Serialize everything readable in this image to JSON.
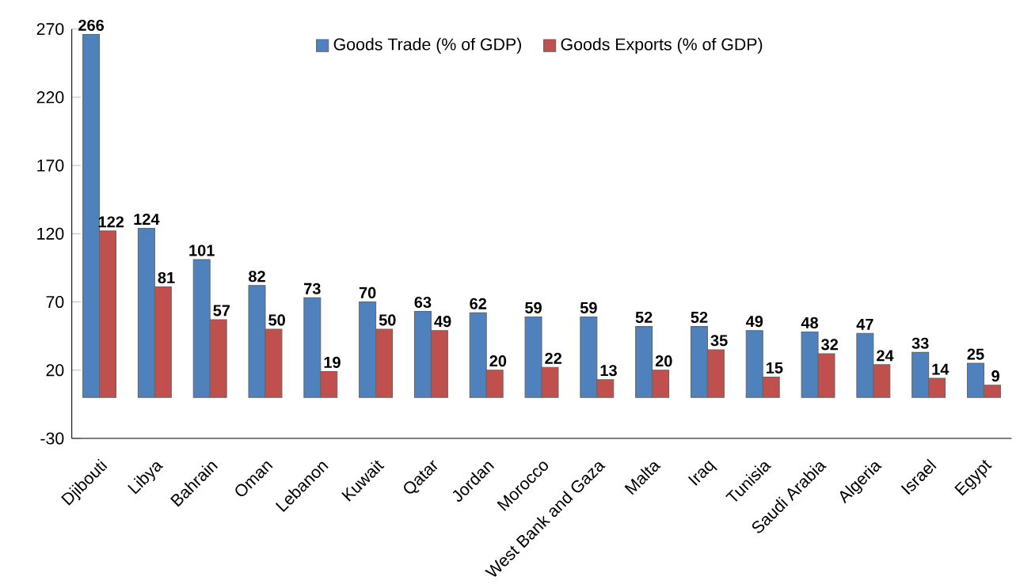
{
  "chart_data": {
    "type": "bar",
    "categories": [
      "Djibouti",
      "Libya",
      "Bahrain",
      "Oman",
      "Lebanon",
      "Kuwait",
      "Qatar",
      "Jordan",
      "Morocco",
      "West Bank and Gaza",
      "Malta",
      "Iraq",
      "Tunisia",
      "Saudi Arabia",
      "Algeria",
      "Israel",
      "Egypt"
    ],
    "series": [
      {
        "name": "Goods Trade (% of GDP)",
        "color": "#4f81bd",
        "values": [
          266,
          124,
          101,
          82,
          73,
          70,
          63,
          62,
          59,
          59,
          52,
          52,
          49,
          48,
          47,
          33,
          25
        ]
      },
      {
        "name": "Goods Exports (% of GDP)",
        "color": "#c0504d",
        "values": [
          122,
          81,
          57,
          50,
          19,
          50,
          49,
          20,
          22,
          13,
          20,
          35,
          15,
          32,
          24,
          14,
          9
        ]
      }
    ],
    "ylim": [
      -30,
      270
    ],
    "yticks": [
      -30,
      20,
      70,
      120,
      170,
      220,
      270
    ],
    "data_labels": true,
    "legend": "top",
    "grid": false
  }
}
